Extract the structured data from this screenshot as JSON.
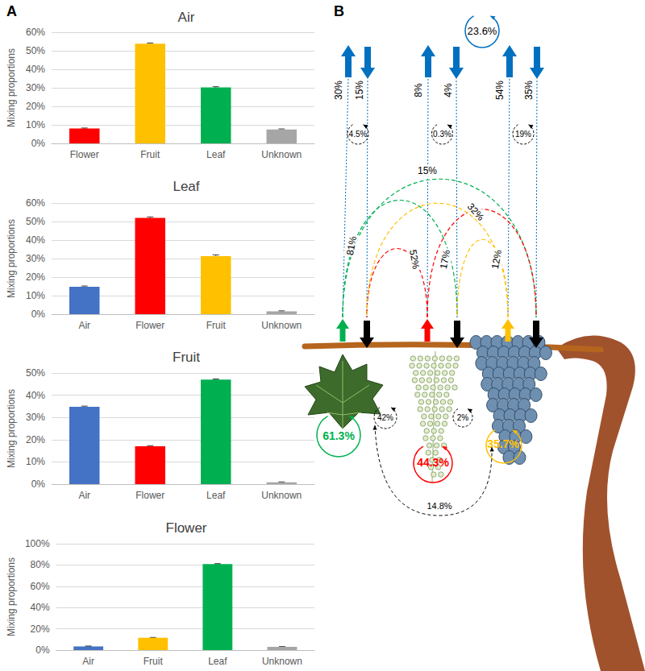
{
  "panel_labels": [
    "A",
    "B"
  ],
  "chart_data": [
    {
      "type": "bar",
      "title": "Air",
      "ylabel": "Mixing proportions",
      "categories": [
        "Flower",
        "Fruit",
        "Leaf",
        "Unknown"
      ],
      "values": [
        8,
        53.8,
        30.2,
        7.5
      ],
      "errors": [
        0.3,
        0.4,
        0.4,
        0.3
      ],
      "colors": [
        "#ff0000",
        "#ffc000",
        "#00b050",
        "#a6a6a6"
      ],
      "ylim": [
        0,
        60
      ],
      "yticks": [
        {
          "value": 0,
          "label": "0%"
        },
        {
          "value": 10,
          "label": "10%"
        },
        {
          "value": 20,
          "label": "20%"
        },
        {
          "value": 30,
          "label": "30%"
        },
        {
          "value": 40,
          "label": "40%"
        },
        {
          "value": 50,
          "label": "50%"
        },
        {
          "value": 60,
          "label": "60%"
        }
      ],
      "grid": true
    },
    {
      "type": "bar",
      "title": "Leaf",
      "ylabel": "Mixing proportions",
      "categories": [
        "Air",
        "Flower",
        "Fruit",
        "Unknown"
      ],
      "values": [
        14.8,
        52,
        31.3,
        1.5
      ],
      "errors": [
        0.4,
        0.5,
        0.7,
        0.3
      ],
      "colors": [
        "#4472c4",
        "#ff0000",
        "#ffc000",
        "#a6a6a6"
      ],
      "ylim": [
        0,
        60
      ],
      "yticks": [
        {
          "value": 0,
          "label": "0%"
        },
        {
          "value": 10,
          "label": "10%"
        },
        {
          "value": 20,
          "label": "20%"
        },
        {
          "value": 30,
          "label": "30%"
        },
        {
          "value": 40,
          "label": "40%"
        },
        {
          "value": 50,
          "label": "50%"
        },
        {
          "value": 60,
          "label": "60%"
        }
      ],
      "grid": true
    },
    {
      "type": "bar",
      "title": "Fruit",
      "ylabel": "Mixing proportions",
      "categories": [
        "Air",
        "Flower",
        "Leaf",
        "Unknown"
      ],
      "values": [
        34.8,
        17,
        47,
        0.8
      ],
      "errors": [
        0.3,
        0.3,
        0.3,
        0.2
      ],
      "colors": [
        "#4472c4",
        "#ff0000",
        "#00b050",
        "#a6a6a6"
      ],
      "ylim": [
        0,
        50
      ],
      "yticks": [
        {
          "value": 0,
          "label": "0%"
        },
        {
          "value": 10,
          "label": "10%"
        },
        {
          "value": 20,
          "label": "20%"
        },
        {
          "value": 30,
          "label": "30%"
        },
        {
          "value": 40,
          "label": "40%"
        },
        {
          "value": 50,
          "label": "50%"
        }
      ],
      "grid": true
    },
    {
      "type": "bar",
      "title": "Flower",
      "ylabel": "Mixing proportions",
      "categories": [
        "Air",
        "Fruit",
        "Leaf",
        "Unknown"
      ],
      "values": [
        3.5,
        11.5,
        80.8,
        3
      ],
      "errors": [
        0.3,
        0.4,
        0.5,
        0.3
      ],
      "colors": [
        "#4472c4",
        "#ffc000",
        "#00b050",
        "#a6a6a6"
      ],
      "ylim": [
        0,
        100
      ],
      "yticks": [
        {
          "value": 0,
          "label": "0%"
        },
        {
          "value": 20,
          "label": "20%"
        },
        {
          "value": 40,
          "label": "40%"
        },
        {
          "value": 60,
          "label": "60%"
        },
        {
          "value": 80,
          "label": "80%"
        },
        {
          "value": 100,
          "label": "100%"
        }
      ],
      "grid": true
    }
  ],
  "diagram": {
    "air_recycling": "23.6%",
    "leaf": {
      "to_air": "30%",
      "from_air": "15%",
      "air_exchange": "4.5%",
      "self": "61.3%"
    },
    "flower": {
      "to_air": "8%",
      "from_air": "4%",
      "air_exchange": "0.3%",
      "self": "44.3%"
    },
    "fruit": {
      "to_air": "54%",
      "from_air": "35%",
      "air_exchange": "19%",
      "self": "35.7%"
    },
    "transfers": {
      "leaf_to_fruit": "15%",
      "leaf_to_flower": "81%",
      "flower_to_leaf": "52%",
      "flower_to_fruit": "32%",
      "fruit_to_leaf": "17%",
      "fruit_to_flower": "12%"
    },
    "exchanges": {
      "leaf_flower": "42%",
      "flower_fruit": "2%",
      "leaf_fruit": "14.8%"
    }
  }
}
